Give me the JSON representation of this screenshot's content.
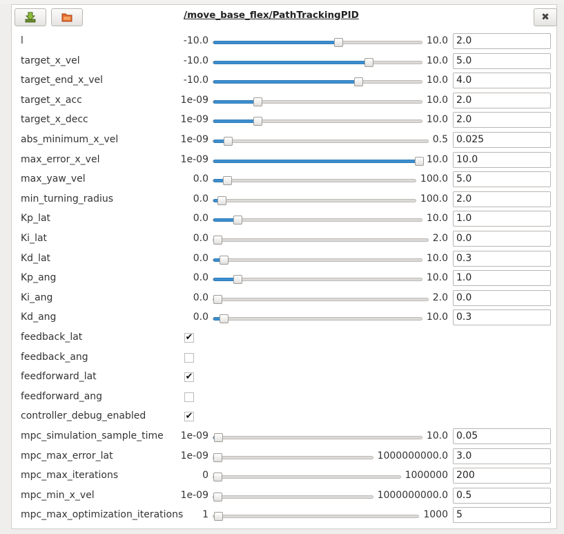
{
  "window": {
    "title": "/move_base_flex/PathTrackingPID"
  },
  "toolbar": {
    "save_icon": "save-arrow-icon",
    "load_icon": "folder-icon",
    "close_icon": "close-x-icon",
    "close_glyph": "✖"
  },
  "params": [
    {
      "name": "l",
      "type": "slider",
      "min": "-10.0",
      "max": "10.0",
      "value": "2.0",
      "fraction": 0.6,
      "filled": true
    },
    {
      "name": "target_x_vel",
      "type": "slider",
      "min": "-10.0",
      "max": "10.0",
      "value": "5.0",
      "fraction": 0.75,
      "filled": true
    },
    {
      "name": "target_end_x_vel",
      "type": "slider",
      "min": "-10.0",
      "max": "10.0",
      "value": "4.0",
      "fraction": 0.7,
      "filled": true
    },
    {
      "name": "target_x_acc",
      "type": "slider",
      "min": "1e-09",
      "max": "10.0",
      "value": "2.0",
      "fraction": 0.2,
      "filled": true
    },
    {
      "name": "target_x_decc",
      "type": "slider",
      "min": "1e-09",
      "max": "10.0",
      "value": "2.0",
      "fraction": 0.2,
      "filled": true
    },
    {
      "name": "abs_minimum_x_vel",
      "type": "slider",
      "min": "1e-09",
      "max": "0.5",
      "value": "0.025",
      "fraction": 0.05,
      "filled": true
    },
    {
      "name": "max_error_x_vel",
      "type": "slider",
      "min": "1e-09",
      "max": "10.0",
      "value": "10.0",
      "fraction": 1.0,
      "filled": true
    },
    {
      "name": "max_yaw_vel",
      "type": "slider",
      "min": "0.0",
      "max": "100.0",
      "value": "5.0",
      "fraction": 0.05,
      "filled": true
    },
    {
      "name": "min_turning_radius",
      "type": "slider",
      "min": "0.0",
      "max": "100.0",
      "value": "2.0",
      "fraction": 0.02,
      "filled": true
    },
    {
      "name": "Kp_lat",
      "type": "slider",
      "min": "0.0",
      "max": "10.0",
      "value": "1.0",
      "fraction": 0.1,
      "filled": true
    },
    {
      "name": "Ki_lat",
      "type": "slider",
      "min": "0.0",
      "max": "2.0",
      "value": "0.0",
      "fraction": 0.0,
      "filled": false
    },
    {
      "name": "Kd_lat",
      "type": "slider",
      "min": "0.0",
      "max": "10.0",
      "value": "0.3",
      "fraction": 0.03,
      "filled": true
    },
    {
      "name": "Kp_ang",
      "type": "slider",
      "min": "0.0",
      "max": "10.0",
      "value": "1.0",
      "fraction": 0.1,
      "filled": true
    },
    {
      "name": "Ki_ang",
      "type": "slider",
      "min": "0.0",
      "max": "2.0",
      "value": "0.0",
      "fraction": 0.0,
      "filled": false
    },
    {
      "name": "Kd_ang",
      "type": "slider",
      "min": "0.0",
      "max": "10.0",
      "value": "0.3",
      "fraction": 0.03,
      "filled": true
    },
    {
      "name": "feedback_lat",
      "type": "checkbox",
      "checked": true
    },
    {
      "name": "feedback_ang",
      "type": "checkbox",
      "checked": false
    },
    {
      "name": "feedforward_lat",
      "type": "checkbox",
      "checked": true
    },
    {
      "name": "feedforward_ang",
      "type": "checkbox",
      "checked": false
    },
    {
      "name": "controller_debug_enabled",
      "type": "checkbox",
      "checked": true
    },
    {
      "name": "mpc_simulation_sample_time",
      "type": "slider",
      "min": "1e-09",
      "max": "10.0",
      "value": "0.05",
      "fraction": 0.005,
      "filled": true
    },
    {
      "name": "mpc_max_error_lat",
      "type": "slider",
      "min": "1e-09",
      "max": "1000000000.0",
      "value": "3.0",
      "fraction": 0.0,
      "filled": false
    },
    {
      "name": "mpc_max_iterations",
      "type": "slider",
      "min": "0",
      "max": "1000000",
      "value": "200",
      "fraction": 0.0,
      "filled": false
    },
    {
      "name": "mpc_min_x_vel",
      "type": "slider",
      "min": "1e-09",
      "max": "1000000000.0",
      "value": "0.5",
      "fraction": 0.0,
      "filled": false
    },
    {
      "name": "mpc_max_optimization_iterations",
      "type": "slider",
      "min": "1",
      "max": "1000",
      "value": "5",
      "fraction": 0.004,
      "filled": false
    }
  ],
  "colors": {
    "accent": "#3c8fd0",
    "panel": "#ffffff",
    "background": "#efeeed"
  }
}
